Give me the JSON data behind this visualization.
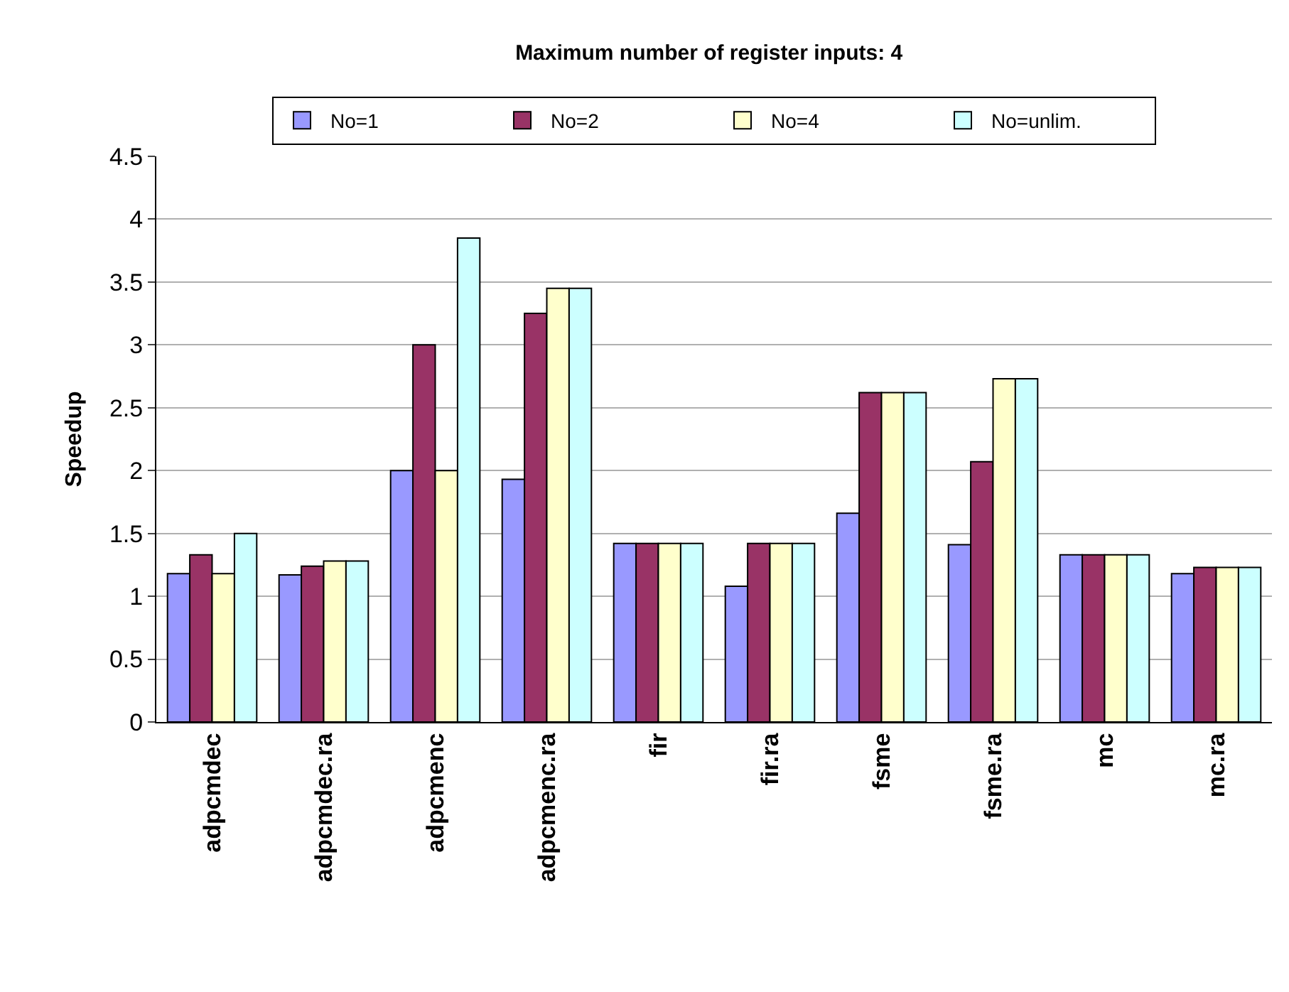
{
  "chart_data": {
    "type": "bar",
    "title": "Maximum number of register inputs: 4",
    "ylabel": "Speedup",
    "categories": [
      "adpcmdec",
      "adpcmdec.ra",
      "adpcmenc",
      "adpcmenc.ra",
      "fir",
      "fir.ra",
      "fsme",
      "fsme.ra",
      "mc",
      "mc.ra"
    ],
    "series": [
      {
        "name": "No=1",
        "color": "#9999ff",
        "values": [
          1.18,
          1.17,
          2.0,
          1.93,
          1.42,
          1.08,
          1.66,
          1.41,
          1.33,
          1.18
        ]
      },
      {
        "name": "No=2",
        "color": "#993366",
        "values": [
          1.33,
          1.24,
          3.0,
          3.25,
          1.42,
          1.42,
          2.62,
          2.07,
          1.33,
          1.23
        ]
      },
      {
        "name": "No=4",
        "color": "#ffffcc",
        "values": [
          1.18,
          1.28,
          2.0,
          3.45,
          1.42,
          1.42,
          2.62,
          2.73,
          1.33,
          1.23
        ]
      },
      {
        "name": "No=unlim.",
        "color": "#ccffff",
        "values": [
          1.5,
          1.28,
          3.85,
          3.45,
          1.42,
          1.42,
          2.62,
          2.73,
          1.33,
          1.23
        ]
      }
    ],
    "ylim": [
      0,
      4.5
    ],
    "yticks": [
      0,
      0.5,
      1,
      1.5,
      2,
      2.5,
      3,
      3.5,
      4,
      4.5
    ],
    "grid": "y",
    "legend": "top"
  }
}
